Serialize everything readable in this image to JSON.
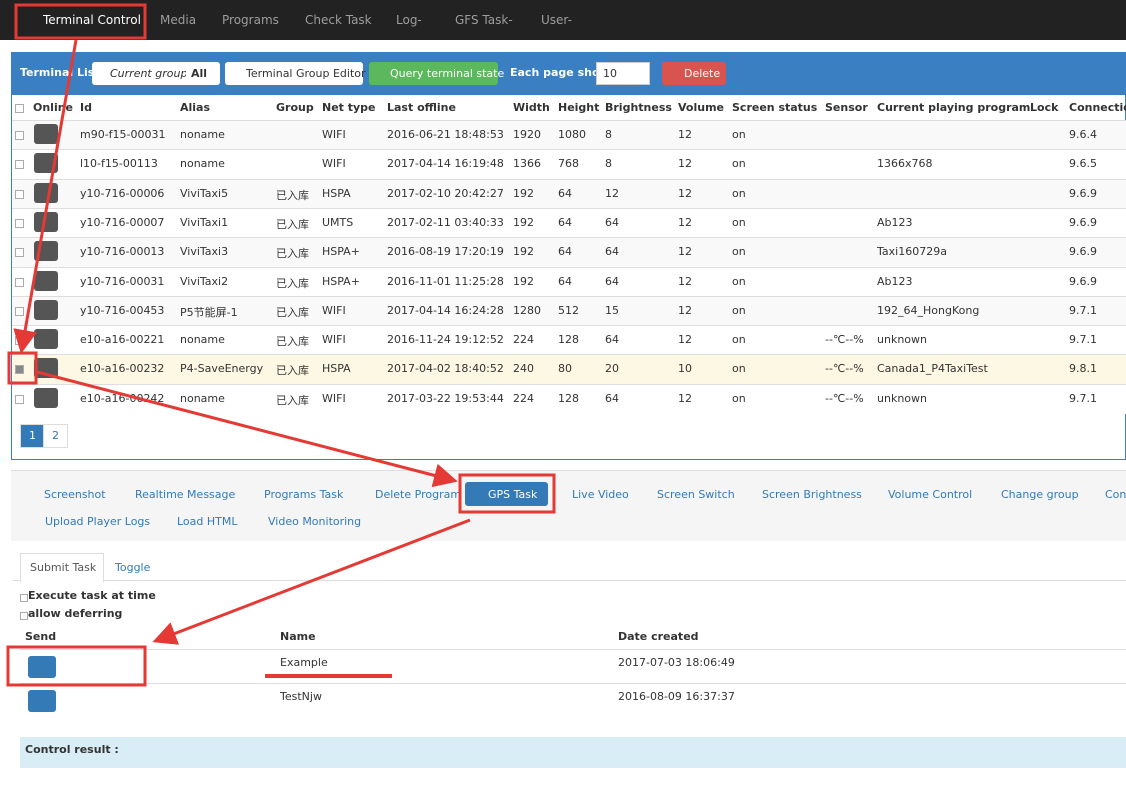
{
  "nav": {
    "items": [
      "Terminal Control",
      "Media",
      "Programs",
      "Check Task",
      "Log-",
      "GFS Task-",
      "User-"
    ]
  },
  "toolbar": {
    "title": "Terminal List",
    "group_label": "Current group :",
    "group_value": "All",
    "group_editor": "Terminal Group Editor",
    "query": "Query terminal state",
    "page_show_label": "Each page show",
    "page_show_value": "10",
    "delete": "Delete"
  },
  "table": {
    "headers": [
      "Online",
      "Id",
      "Alias",
      "Group",
      "Net type",
      "Last offline",
      "Width",
      "Height",
      "Brightness",
      "Volume",
      "Screen status",
      "Sensor",
      "Current playing program",
      "Lock",
      "Connection"
    ],
    "rows": [
      [
        "m90-f15-00031",
        "noname",
        null,
        "WIFI",
        "2016-06-21 18:48:53",
        "1920",
        "1080",
        "8",
        "12",
        "on",
        null,
        null,
        null,
        "9.6.4"
      ],
      [
        "l10-f15-00113",
        "noname",
        null,
        "WIFI",
        "2017-04-14 16:19:48",
        "1366",
        "768",
        "8",
        "12",
        "on",
        null,
        "1366x768",
        null,
        "9.6.5"
      ],
      [
        "y10-716-00006",
        "ViviTaxi5",
        "已入库",
        "HSPA",
        "2017-02-10 20:42:27",
        "192",
        "64",
        "12",
        "12",
        "on",
        null,
        null,
        null,
        "9.6.9"
      ],
      [
        "y10-716-00007",
        "ViviTaxi1",
        "已入库",
        "UMTS",
        "2017-02-11 03:40:33",
        "192",
        "64",
        "64",
        "12",
        "on",
        null,
        "Ab123",
        null,
        "9.6.9"
      ],
      [
        "y10-716-00013",
        "ViviTaxi3",
        "已入库",
        "HSPA+",
        "2016-08-19 17:20:19",
        "192",
        "64",
        "64",
        "12",
        "on",
        null,
        "Taxi160729a",
        null,
        "9.6.9"
      ],
      [
        "y10-716-00031",
        "ViviTaxi2",
        "已入库",
        "HSPA+",
        "2016-11-01 11:25:28",
        "192",
        "64",
        "64",
        "12",
        "on",
        null,
        "Ab123",
        null,
        "9.6.9"
      ],
      [
        "y10-716-00453",
        "P5节能屏-1",
        "已入库",
        "WIFI",
        "2017-04-14 16:24:28",
        "1280",
        "512",
        "15",
        "12",
        "on",
        null,
        "192_64_HongKong",
        null,
        "9.7.1"
      ],
      [
        "e10-a16-00221",
        "noname",
        "已入库",
        "WIFI",
        "2016-11-24 19:12:52",
        "224",
        "128",
        "64",
        "12",
        "on",
        "--℃--%",
        "unknown",
        null,
        "9.7.1"
      ],
      [
        "e10-a16-00232",
        "P4-SaveEnergy",
        "已入库",
        "HSPA",
        "2017-04-02 18:40:52",
        "240",
        "80",
        "20",
        "10",
        "on",
        "--℃--%",
        "Canada1_P4TaxiTest",
        null,
        "9.8.1"
      ],
      [
        "e10-a16-00242",
        "noname",
        "已入库",
        "WIFI",
        "2017-03-22 19:53:44",
        "224",
        "128",
        "64",
        "12",
        "on",
        "--℃--%",
        "unknown",
        null,
        "9.7.1"
      ]
    ],
    "selected_row": 8,
    "pages": [
      "1",
      "2"
    ]
  },
  "actions": {
    "row1": [
      "Screenshot",
      "Realtime Message",
      "Programs Task",
      "Delete Program",
      "GPS Task",
      "Live Video",
      "Screen Switch",
      "Screen Brightness",
      "Volume Control",
      "Change group",
      "Con"
    ],
    "row2": [
      "Upload Player Logs",
      "Load HTML",
      "Video Monitoring"
    ]
  },
  "task": {
    "tabs": [
      "Submit Task",
      "Toggle"
    ],
    "options": [
      "Execute task at time",
      "allow deferring"
    ],
    "headers": [
      "Send",
      "Name",
      "Date created"
    ],
    "rows": [
      [
        "Example",
        "2017-07-03 18:06:49"
      ],
      [
        "TestNjw",
        "2016-08-09 16:37:37"
      ]
    ],
    "result": "Control result :"
  }
}
